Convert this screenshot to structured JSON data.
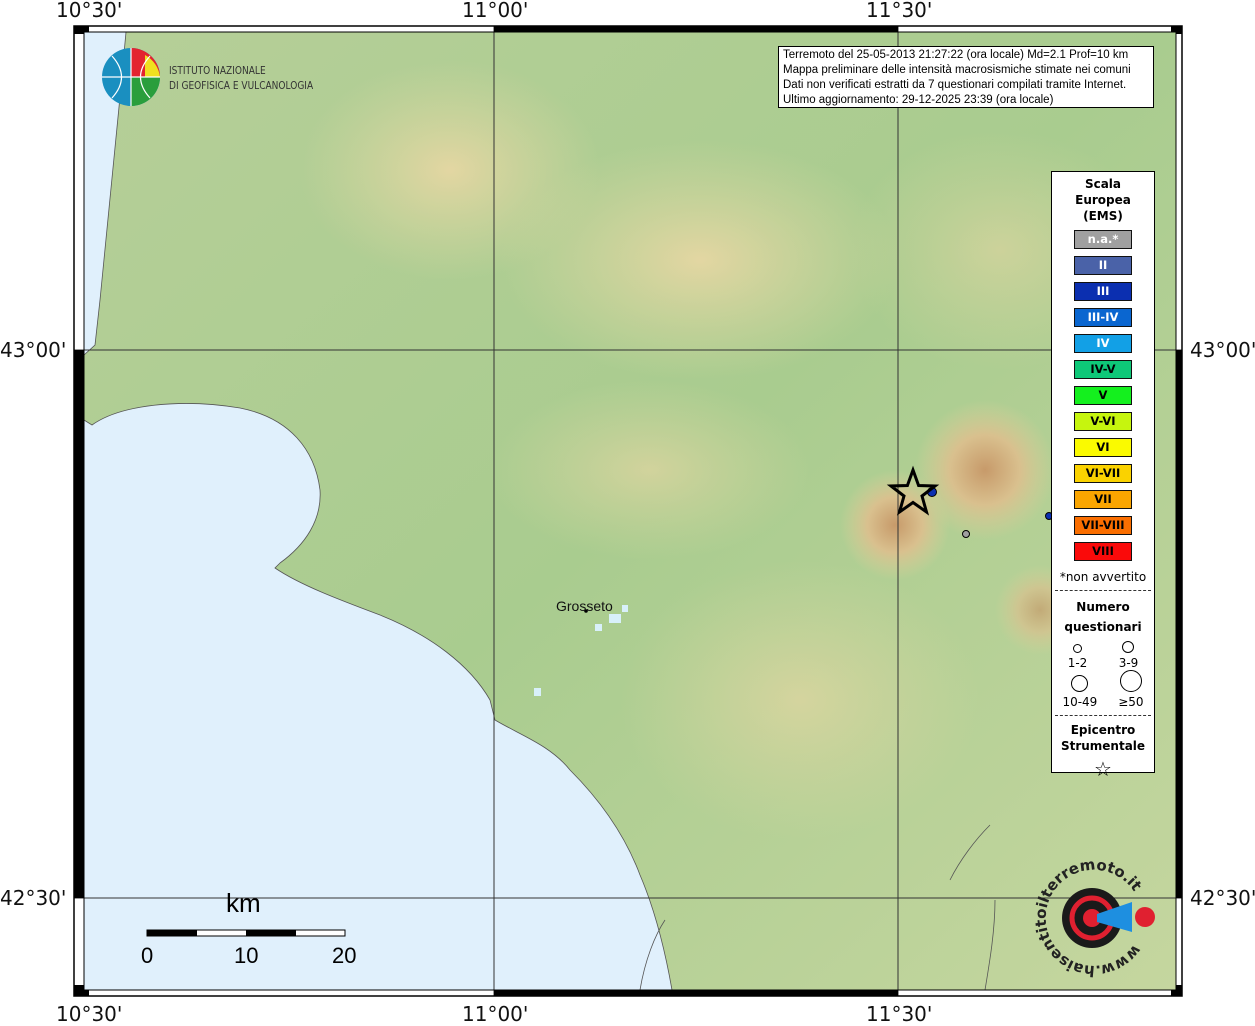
{
  "coords": {
    "top": [
      "10°30'",
      "11°00'",
      "11°30'"
    ],
    "bottom": [
      "10°30'",
      "11°00'",
      "11°30'"
    ],
    "left": [
      "43°00'",
      "42°30'"
    ],
    "right": [
      "43°00'",
      "42°30'"
    ]
  },
  "logo": {
    "line1": "ISTITUTO NAZIONALE",
    "line2": "DI GEOFISICA E VULCANOLOGIA"
  },
  "info": {
    "line1": "Terremoto del 25-05-2013 21:27:22 (ora locale) Md=2.1 Prof=10 km",
    "line2": "Mappa preliminare delle intensità macrosismiche stimate nei comuni",
    "line3": "Dati non verificati estratti da 7 questionari compilati tramite Internet.",
    "line4": "Ultimo aggiornamento: 29-12-2025 23:39 (ora locale)"
  },
  "legend": {
    "title": [
      "Scala",
      "Europea",
      "(EMS)"
    ],
    "scale": [
      {
        "label": "n.a.*",
        "color": "#a0a0a0",
        "text": "#ffffff"
      },
      {
        "label": "II",
        "color": "#4a62a8",
        "text": "#ffffff"
      },
      {
        "label": "III",
        "color": "#0b2fb0",
        "text": "#ffffff"
      },
      {
        "label": "III-IV",
        "color": "#0a66d0",
        "text": "#ffffff"
      },
      {
        "label": "IV",
        "color": "#12a0e6",
        "text": "#ffffff"
      },
      {
        "label": "IV-V",
        "color": "#0ec878",
        "text": "#000000"
      },
      {
        "label": "V",
        "color": "#14f01e",
        "text": "#000000"
      },
      {
        "label": "V-VI",
        "color": "#c6f50e",
        "text": "#000000"
      },
      {
        "label": "VI",
        "color": "#fafa00",
        "text": "#000000"
      },
      {
        "label": "VI-VII",
        "color": "#fad200",
        "text": "#000000"
      },
      {
        "label": "VII",
        "color": "#faa500",
        "text": "#000000"
      },
      {
        "label": "VII-VIII",
        "color": "#fa6e00",
        "text": "#000000"
      },
      {
        "label": "VIII",
        "color": "#fa0a0a",
        "text": "#000000"
      }
    ],
    "note": "*non avvertito",
    "count_title": [
      "Numero",
      "questionari"
    ],
    "counts": [
      "1-2",
      "3-9",
      "10-49",
      "≥50"
    ],
    "epicentre_title": [
      "Epicentro",
      "Strumentale"
    ],
    "epicentre_icon": "star-icon"
  },
  "places": {
    "grosseto": "Grosseto"
  },
  "scalebar": {
    "unit": "km",
    "ticks": [
      "0",
      "10",
      "20"
    ]
  },
  "brand": {
    "haisentito": "www.haisentitoilterremoto.it"
  }
}
